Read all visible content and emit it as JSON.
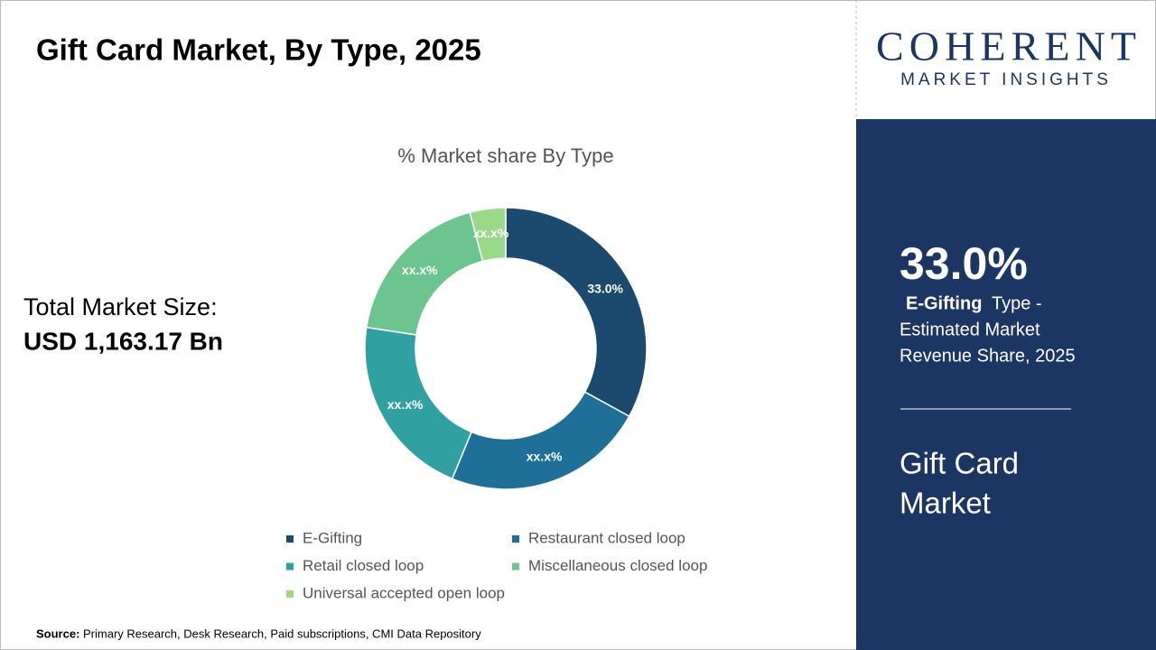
{
  "header": {
    "title": "Gift Card Market, By Type, 2025"
  },
  "market_size": {
    "label": "Total Market Size:",
    "value": "USD 1,163.17 Bn"
  },
  "chart_data": {
    "type": "donut",
    "title": "% Market share By Type",
    "categories": [
      "E-Gifting",
      "Restaurant closed loop",
      "Retail closed loop",
      "Miscellaneous closed loop",
      "Universal accepted open loop"
    ],
    "values": [
      33.0,
      23.2,
      21.2,
      18.5,
      4.1
    ],
    "value_labels": [
      "33.0%",
      "xx.x%",
      "xx.x%",
      "xx.x%",
      "xx.x%"
    ],
    "colors": [
      "#1b4a6e",
      "#1f7098",
      "#31a0a0",
      "#6cc58f",
      "#9ad98a"
    ]
  },
  "logo": {
    "name": "COHERENT",
    "tagline": "MARKET INSIGHTS"
  },
  "panel": {
    "share": "33.0%",
    "segment": "E-Gifting",
    "lines": [
      "Type -",
      "Estimated Market",
      "Revenue Share, 2025"
    ],
    "market": [
      "Gift Card",
      "Market"
    ]
  },
  "source": {
    "label": "Source:",
    "text": "Primary Research, Desk Research, Paid subscriptions, CMI Data Repository"
  }
}
